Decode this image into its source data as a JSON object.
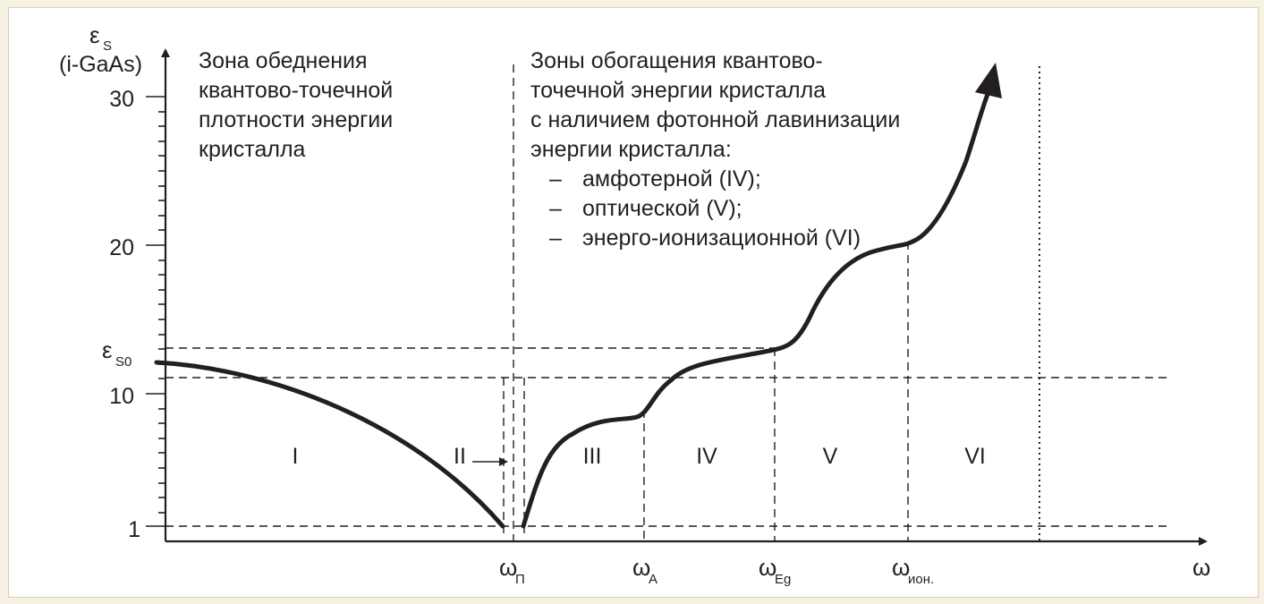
{
  "colors": {
    "frame": "#f6f1e3",
    "ink": "#231f20",
    "panel": "#ffffff"
  },
  "y_axis": {
    "symbol": "ε",
    "symbol_sub": "S",
    "unit_label": "(i-GaAs)",
    "ticks": [
      "30",
      "20",
      "10",
      "1"
    ],
    "es0_symbol": "ε",
    "es0_sub": "S0"
  },
  "x_axis": {
    "label": "ω",
    "markers": [
      {
        "sym": "ω",
        "sub": "П"
      },
      {
        "sym": "ω",
        "sub": "А"
      },
      {
        "sym": "ω",
        "sub": "Eg"
      },
      {
        "sym": "ω",
        "sub": "ион."
      }
    ]
  },
  "left_note": [
    "Зона обеднения",
    "квантово-точечной",
    "плотности энергии",
    "кристалла"
  ],
  "right_note": {
    "lines": [
      "Зоны обогащения квантово-",
      "точечной энергии кристалла",
      "с наличием фотонной лавинизации",
      "энергии кристалла:"
    ],
    "bullets": [
      "амфотерной (IV);",
      "оптической (V);",
      "энерго-ионизационной (VI)"
    ],
    "dash": "–"
  },
  "zones": [
    "I",
    "II",
    "III",
    "IV",
    "V",
    "VI"
  ]
}
